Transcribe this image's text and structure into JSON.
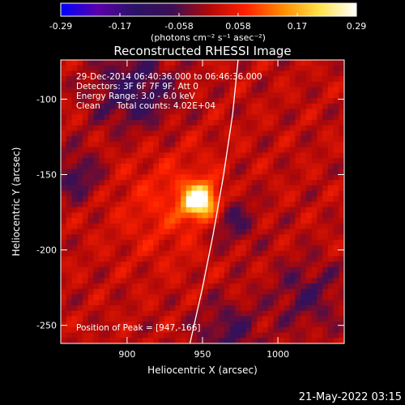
{
  "colorbar": {
    "ticks": [
      "-0.29",
      "-0.17",
      "-0.058",
      "0.058",
      "0.17",
      "0.29"
    ],
    "unit_label": "(photons cm⁻² s⁻¹ asec⁻²)",
    "colors": [
      "#0000ff",
      "#5a00aa",
      "#2b1366",
      "#3a0f55",
      "#b00808",
      "#ff2000",
      "#ff8a00",
      "#ffe24a",
      "#ffffff"
    ]
  },
  "chart_data": {
    "type": "heatmap",
    "title": "Reconstructed RHESSI Image",
    "xlabel": "Heliocentric X (arcsec)",
    "ylabel": "Heliocentric Y (arcsec)",
    "xlim": [
      856,
      1044
    ],
    "ylim": [
      -262,
      -74
    ],
    "x_ticks": [
      900,
      950,
      1000
    ],
    "y_ticks": [
      -100,
      -150,
      -200,
      -250
    ],
    "value_range": [
      -0.29,
      0.29
    ],
    "peak": {
      "x": 947,
      "y": -166
    },
    "limb_curve": [
      {
        "x": 973.6,
        "y": -74
      },
      {
        "x": 970,
        "y": -110
      },
      {
        "x": 964,
        "y": -150
      },
      {
        "x": 957,
        "y": -190
      },
      {
        "x": 950,
        "y": -225
      },
      {
        "x": 941.7,
        "y": -262
      }
    ]
  },
  "info": {
    "line1": "29-Dec-2014 06:40:36.000 to 06:46:36.000",
    "line2": "Detectors: 3F 6F 7F 9F, Att 0",
    "line3": "Energy Range: 3.0 - 6.0 keV",
    "line4a": "Clean",
    "line4b": "Total counts: 4.02E+04",
    "peak_label": "Position of Peak = [947,-166]"
  },
  "footer": {
    "timestamp": "21-May-2022 03:15"
  }
}
